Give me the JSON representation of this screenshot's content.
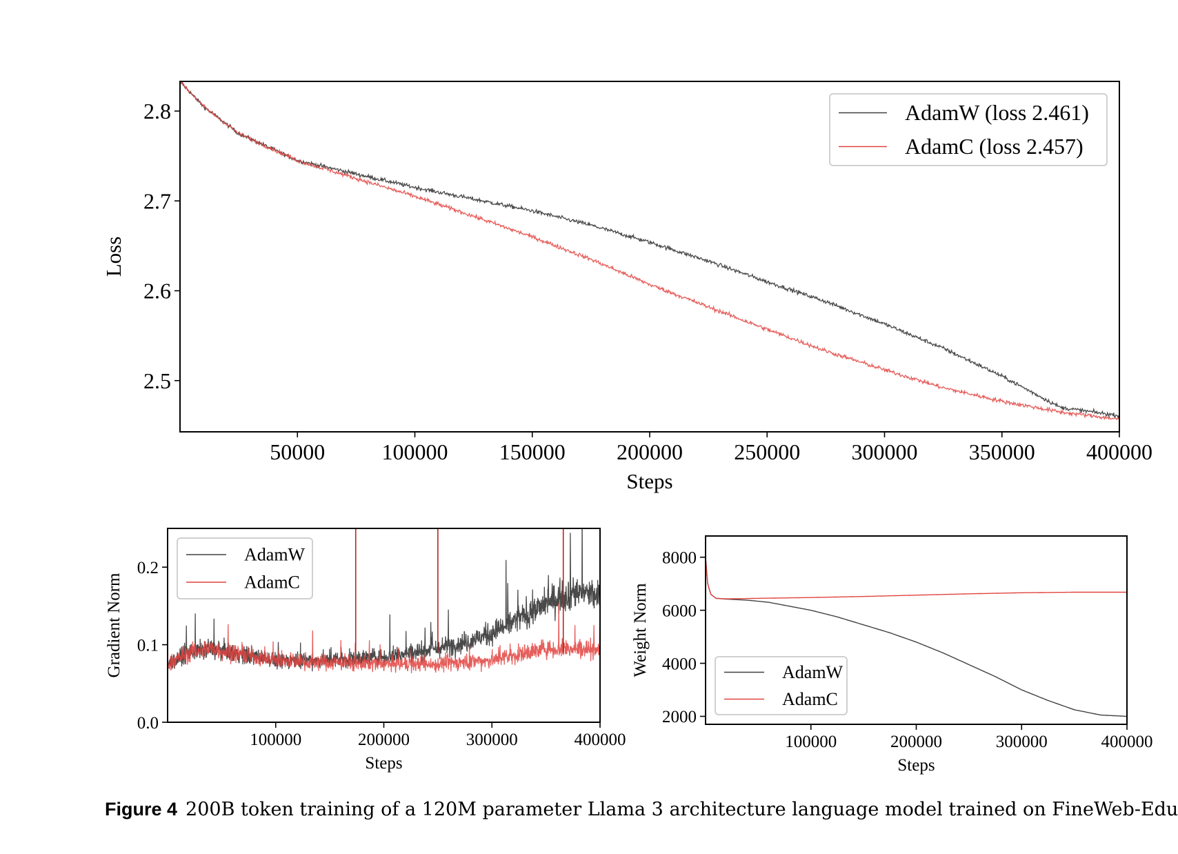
{
  "caption": {
    "label": "Figure 4",
    "text": "200B token training of a 120M parameter Llama 3 architecture language model trained on FineWeb-Edu"
  },
  "colors": {
    "adamw": "#404040",
    "adamc": "#e0433f",
    "axis": "#000000"
  },
  "chart_data": [
    {
      "id": "loss",
      "type": "line",
      "title": "",
      "xlabel": "Steps",
      "ylabel": "Loss",
      "xlim": [
        0,
        400000
      ],
      "ylim": [
        2.443,
        2.833
      ],
      "xticks": [
        50000,
        100000,
        150000,
        200000,
        250000,
        300000,
        350000,
        400000
      ],
      "yticks": [
        2.5,
        2.6,
        2.7,
        2.8
      ],
      "legend_position": "top-right",
      "series": [
        {
          "name": "AdamW (loss 2.461)",
          "x": [
            0,
            10000,
            25000,
            50000,
            75000,
            100000,
            125000,
            150000,
            175000,
            200000,
            225000,
            250000,
            275000,
            300000,
            325000,
            350000,
            375000,
            400000
          ],
          "y": [
            2.833,
            2.805,
            2.775,
            2.745,
            2.73,
            2.715,
            2.702,
            2.689,
            2.673,
            2.654,
            2.633,
            2.61,
            2.588,
            2.563,
            2.536,
            2.505,
            2.47,
            2.461
          ]
        },
        {
          "name": "AdamC (loss 2.457)",
          "x": [
            0,
            10000,
            25000,
            50000,
            75000,
            100000,
            125000,
            150000,
            175000,
            200000,
            225000,
            250000,
            275000,
            300000,
            325000,
            350000,
            375000,
            400000
          ],
          "y": [
            2.833,
            2.805,
            2.775,
            2.745,
            2.725,
            2.705,
            2.683,
            2.66,
            2.635,
            2.607,
            2.582,
            2.557,
            2.533,
            2.512,
            2.492,
            2.477,
            2.465,
            2.457
          ]
        }
      ]
    },
    {
      "id": "gradnorm",
      "type": "line",
      "title": "",
      "xlabel": "Steps",
      "ylabel": "Gradient Norm",
      "xlim": [
        0,
        400000
      ],
      "ylim": [
        0.0,
        0.25
      ],
      "xticks": [
        100000,
        200000,
        300000,
        400000
      ],
      "yticks": [
        0.0,
        0.1,
        0.2
      ],
      "legend_position": "top-left",
      "series": [
        {
          "name": "AdamW",
          "x": [
            0,
            20000,
            40000,
            60000,
            80000,
            100000,
            150000,
            200000,
            250000,
            280000,
            300000,
            320000,
            340000,
            360000,
            380000,
            400000
          ],
          "y": [
            0.075,
            0.09,
            0.095,
            0.09,
            0.085,
            0.08,
            0.08,
            0.085,
            0.095,
            0.105,
            0.115,
            0.13,
            0.145,
            0.16,
            0.17,
            0.16
          ]
        },
        {
          "name": "AdamC",
          "x": [
            0,
            20000,
            40000,
            60000,
            80000,
            100000,
            150000,
            200000,
            250000,
            300000,
            350000,
            400000
          ],
          "y": [
            0.075,
            0.09,
            0.095,
            0.09,
            0.085,
            0.08,
            0.077,
            0.075,
            0.075,
            0.08,
            0.095,
            0.095
          ]
        }
      ],
      "spikes": {
        "series": "AdamC",
        "x": [
          174000,
          250000,
          366000
        ],
        "y": [
          0.25,
          0.25,
          0.25
        ]
      }
    },
    {
      "id": "weightnorm",
      "type": "line",
      "title": "",
      "xlabel": "Steps",
      "ylabel": "Weight Norm",
      "xlim": [
        0,
        400000
      ],
      "ylim": [
        1700,
        8800
      ],
      "xticks": [
        100000,
        200000,
        300000,
        400000
      ],
      "yticks": [
        2000,
        4000,
        6000,
        8000
      ],
      "legend_position": "bottom-left",
      "series": [
        {
          "name": "AdamW",
          "x": [
            0,
            2000,
            5000,
            10000,
            20000,
            40000,
            60000,
            80000,
            100000,
            125000,
            150000,
            175000,
            200000,
            225000,
            250000,
            275000,
            300000,
            325000,
            350000,
            375000,
            400000
          ],
          "y": [
            8000,
            7000,
            6600,
            6450,
            6420,
            6380,
            6300,
            6150,
            6000,
            5750,
            5450,
            5150,
            4800,
            4400,
            3950,
            3500,
            3000,
            2600,
            2250,
            2050,
            2000
          ]
        },
        {
          "name": "AdamC",
          "x": [
            0,
            2000,
            5000,
            10000,
            20000,
            50000,
            100000,
            150000,
            200000,
            250000,
            300000,
            350000,
            400000
          ],
          "y": [
            8000,
            7000,
            6600,
            6450,
            6430,
            6450,
            6480,
            6520,
            6570,
            6620,
            6660,
            6680,
            6680
          ]
        }
      ]
    }
  ]
}
